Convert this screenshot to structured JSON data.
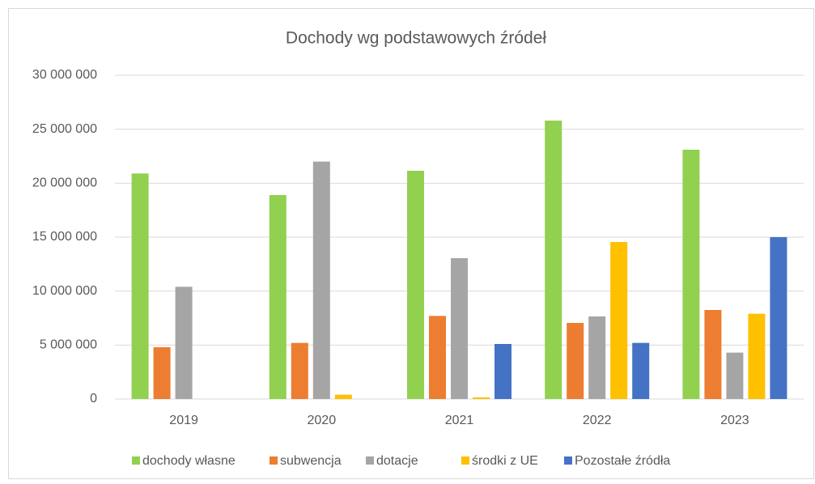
{
  "chart_data": {
    "type": "bar",
    "title": "Dochody wg podstawowych źródeł",
    "categories": [
      "2019",
      "2020",
      "2021",
      "2022",
      "2023"
    ],
    "series": [
      {
        "name": "dochody własne",
        "color": "#92d050",
        "values": [
          20900000,
          18900000,
          21150000,
          25800000,
          23100000
        ]
      },
      {
        "name": "subwencja",
        "color": "#ed7d31",
        "values": [
          4800000,
          5200000,
          7700000,
          7050000,
          8250000
        ]
      },
      {
        "name": "dotacje",
        "color": "#a5a5a5",
        "values": [
          10400000,
          22000000,
          13050000,
          7650000,
          4300000
        ]
      },
      {
        "name": "środki z UE",
        "color": "#ffc000",
        "values": [
          0,
          400000,
          150000,
          14550000,
          7900000
        ]
      },
      {
        "name": "Pozostałe źródła",
        "color": "#4472c4",
        "values": [
          0,
          0,
          5100000,
          5200000,
          15000000
        ]
      }
    ],
    "ylim": [
      0,
      30000000
    ],
    "yticks": [
      {
        "value": 0,
        "label": "0"
      },
      {
        "value": 5000000,
        "label": "5 000 000"
      },
      {
        "value": 10000000,
        "label": "10 000 000"
      },
      {
        "value": 15000000,
        "label": "15 000 000"
      },
      {
        "value": 20000000,
        "label": "20 000 000"
      },
      {
        "value": 25000000,
        "label": "25 000 000"
      },
      {
        "value": 30000000,
        "label": "30 000 000"
      }
    ],
    "grid": true,
    "legend": "bottom"
  }
}
